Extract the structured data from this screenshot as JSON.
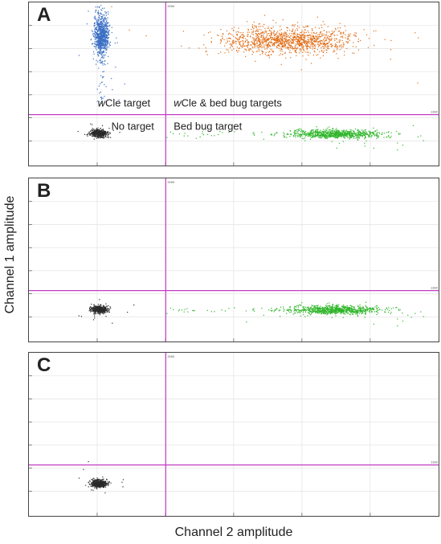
{
  "ylabel": "Channel 1 amplitude",
  "xlabel": "Channel 2 amplitude",
  "colors": {
    "wcle": "#3a6fc4",
    "both": "#e06a12",
    "bedbug": "#2fb52a",
    "none": "#2a2a2a",
    "threshold": "#c23cc2",
    "grid": "#e6e6e6"
  },
  "chart_data": [
    {
      "type": "scatter",
      "panel": "A",
      "grid": true,
      "thresholds": {
        "x": 2000,
        "y": 1300
      },
      "quadrant_labels": {
        "upper_left": {
          "italic": "w",
          "text": "Cle target"
        },
        "upper_right": {
          "italic": "w",
          "text": "Cle & bed bug targets"
        },
        "lower_left": {
          "text": "No target"
        },
        "lower_right": {
          "text": "Bed bug target"
        }
      },
      "threshold_tick_labels": {
        "x": "2000",
        "y": "1300"
      },
      "clusters": [
        {
          "name": "wCle",
          "color": "#3a6fc4",
          "present": true
        },
        {
          "name": "wCle & bed bug",
          "color": "#e06a12",
          "present": true
        },
        {
          "name": "bed bug",
          "color": "#2fb52a",
          "present": true
        },
        {
          "name": "no target",
          "color": "#2a2a2a",
          "present": true
        }
      ]
    },
    {
      "type": "scatter",
      "panel": "B",
      "grid": true,
      "thresholds": {
        "x": 2000,
        "y": 1300
      },
      "threshold_tick_labels": {
        "x": "2000",
        "y": "1300"
      },
      "clusters": [
        {
          "name": "bed bug",
          "color": "#2fb52a",
          "present": true
        },
        {
          "name": "no target",
          "color": "#2a2a2a",
          "present": true
        }
      ]
    },
    {
      "type": "scatter",
      "panel": "C",
      "grid": true,
      "thresholds": {
        "x": 2000,
        "y": 1300
      },
      "threshold_tick_labels": {
        "x": "2000",
        "y": "1300"
      },
      "clusters": [
        {
          "name": "no target",
          "color": "#2a2a2a",
          "present": true
        }
      ]
    }
  ],
  "panels": [
    {
      "letter": "A"
    },
    {
      "letter": "B"
    },
    {
      "letter": "C"
    }
  ]
}
